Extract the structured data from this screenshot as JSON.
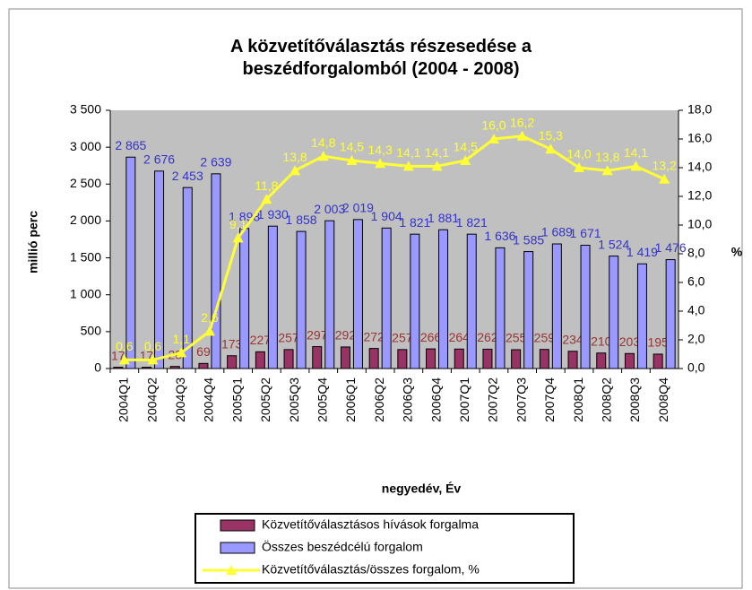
{
  "chart_data": {
    "type": "bar_line",
    "title": "A közvetítőválasztás részesedése a beszédforgalomból (2004 - 2008)",
    "x_label": "negyedév,  Év",
    "y_label": "millió perc",
    "y2_label": "%",
    "categories": [
      "2004Q1",
      "2004Q2",
      "2004Q3",
      "2004Q4",
      "2005Q1",
      "2005Q2",
      "2005Q3",
      "2005Q4",
      "2006Q1",
      "2006Q2",
      "2006Q3",
      "2006Q4",
      "2007Q1",
      "2007Q2",
      "2007Q3",
      "2007Q4",
      "2008Q1",
      "2008Q2",
      "2008Q3",
      "2008Q4"
    ],
    "series": [
      {
        "name": "Közvetítőválasztásos hívások forgalma",
        "type": "bar",
        "color": "#993366",
        "values": [
          17,
          17,
          28,
          69,
          173,
          227,
          257,
          297,
          292,
          272,
          257,
          266,
          264,
          262,
          255,
          259,
          234,
          210,
          203,
          195
        ]
      },
      {
        "name": "Összes beszédcélú forgalom",
        "type": "bar",
        "color": "#9999ff",
        "values": [
          2865,
          2676,
          2453,
          2639,
          1898,
          1930,
          1858,
          2003,
          2019,
          1904,
          1821,
          1881,
          1821,
          1636,
          1585,
          1689,
          1671,
          1524,
          1419,
          1476
        ],
        "value_labels": [
          "2 865",
          "2 676",
          "2 453",
          "2 639",
          "1 898",
          "1 930",
          "1 858",
          "2 003",
          "2 019",
          "1 904",
          "1 821",
          "1 881",
          "1 821",
          "1 636",
          "1 585",
          "1 689",
          "1 671",
          "1 524",
          "1 419",
          "1 476"
        ]
      },
      {
        "name": "Közvetítőválasztás/összes forgalom, %",
        "type": "line",
        "axis": "y2",
        "color": "#ffff33",
        "values": [
          0.6,
          0.6,
          1.1,
          2.6,
          9.1,
          11.8,
          13.8,
          14.8,
          14.5,
          14.3,
          14.1,
          14.1,
          14.5,
          16.0,
          16.2,
          15.3,
          14.0,
          13.8,
          14.1,
          13.2
        ],
        "value_labels": [
          "0,6",
          "0,6",
          "1,1",
          "2,6",
          "9,1",
          "11,8",
          "13,8",
          "14,8",
          "14,5",
          "14,3",
          "14,1",
          "14,1",
          "14,5",
          "16,0",
          "16,2",
          "15,3",
          "14,0",
          "13,8",
          "14,1",
          "13,2"
        ]
      }
    ],
    "ylim": [
      0,
      3500
    ],
    "yticks": [
      0,
      500,
      {
        "value": 1000,
        "label": "1 000"
      },
      {
        "value": 1500,
        "label": "1 500"
      },
      {
        "value": 2000,
        "label": "2 000"
      },
      {
        "value": 2500,
        "label": "2 500"
      },
      {
        "value": 3000,
        "label": "3 000"
      },
      {
        "value": 3500,
        "label": "3 500"
      }
    ],
    "y2lim": [
      0,
      18
    ],
    "y2ticks": [
      {
        "value": 0,
        "label": "0,0"
      },
      {
        "value": 2,
        "label": "2,0"
      },
      {
        "value": 4,
        "label": "4,0"
      },
      {
        "value": 6,
        "label": "6,0"
      },
      {
        "value": 8,
        "label": "8,0"
      },
      {
        "value": 10,
        "label": "10,0"
      },
      {
        "value": 12,
        "label": "12,0"
      },
      {
        "value": 14,
        "label": "14,0"
      },
      {
        "value": 16,
        "label": "16,0"
      },
      {
        "value": 18,
        "label": "18,0"
      }
    ],
    "grid": false,
    "plot_background": "#c0c0c0",
    "legend": "bottom"
  }
}
